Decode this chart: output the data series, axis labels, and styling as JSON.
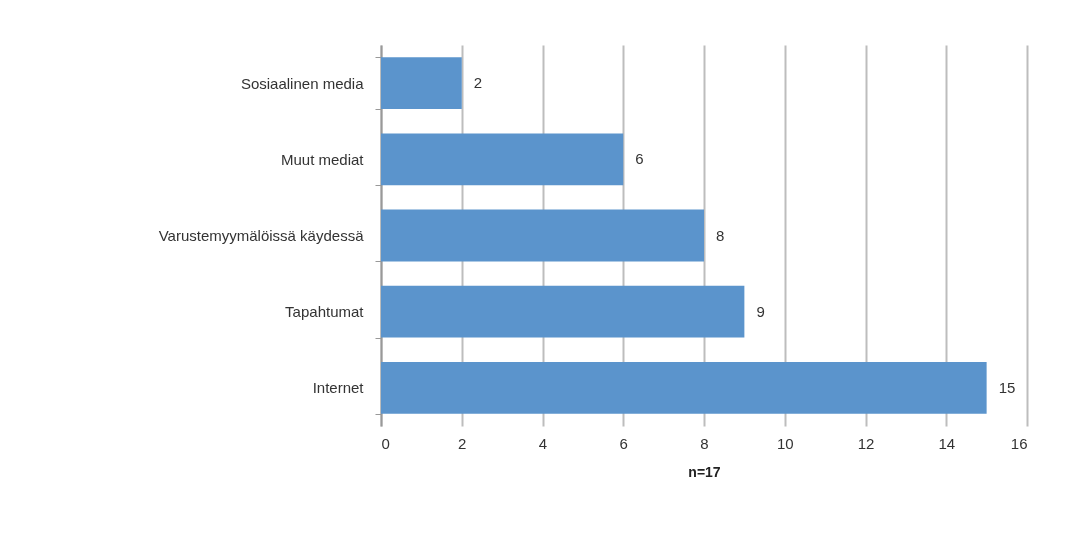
{
  "chart_data": {
    "type": "bar",
    "orientation": "horizontal",
    "xlabel": "n=17",
    "categories": [
      "Sosiaalinen media",
      "Muut mediat",
      "Varustemyymälöissä käydessä",
      "Tapahtumat",
      "Internet"
    ],
    "values": [
      2,
      6,
      8,
      9,
      15
    ],
    "color": "#5b94cc",
    "xlim": [
      0,
      16
    ],
    "xticks": [
      0,
      2,
      4,
      6,
      8,
      10,
      12,
      14,
      16
    ],
    "grid": "x",
    "data_labels": true
  }
}
